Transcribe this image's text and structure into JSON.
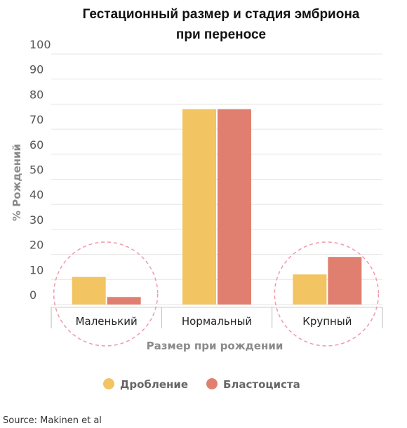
{
  "chart_data": {
    "type": "bar",
    "title_lines": [
      "Гестационный размер и стадия эмбриона",
      "при переносе"
    ],
    "xlabel": "Размер при рождении",
    "ylabel": "% Рождений",
    "categories": [
      "Маленький",
      "Нормальный",
      "Крупный"
    ],
    "series": [
      {
        "name": "Дробление",
        "color": "#f2c462",
        "values": [
          11,
          78,
          12
        ]
      },
      {
        "name": "Бластоциста",
        "color": "#e07f6f",
        "values": [
          3,
          78,
          19
        ]
      }
    ],
    "yticks": [
      0,
      10,
      20,
      30,
      40,
      50,
      60,
      70,
      80,
      90,
      100
    ],
    "ylim": [
      0,
      100
    ],
    "grid": true,
    "legend_position": "bottom",
    "highlight_color": "#ef9aaa",
    "highlighted_categories": [
      "Маленький",
      "Крупный"
    ]
  },
  "source": "Source: Makinen et al"
}
